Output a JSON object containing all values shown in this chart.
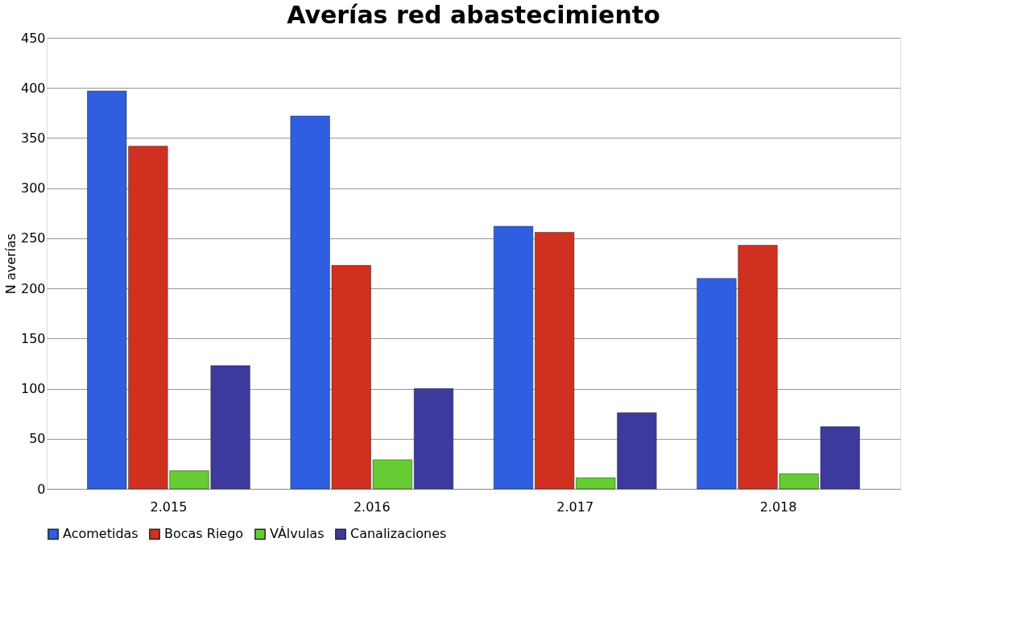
{
  "chart_data": {
    "type": "bar",
    "title": "Averías red abastecimiento",
    "ylabel": "N averías",
    "categories": [
      "2.015",
      "2.016",
      "2.017",
      "2.018"
    ],
    "series": [
      {
        "name": "Acometidas",
        "color": "#2f5fe0",
        "values": [
          397,
          372,
          262,
          210
        ]
      },
      {
        "name": "Bocas Riego",
        "color": "#d03020",
        "values": [
          342,
          223,
          256,
          243
        ]
      },
      {
        "name": "VÁlvulas",
        "color": "#66cc33",
        "values": [
          18,
          29,
          11,
          15
        ]
      },
      {
        "name": "Canalizaciones",
        "color": "#3d3a9e",
        "values": [
          123,
          100,
          76,
          62
        ]
      }
    ],
    "ylim": [
      0,
      450
    ],
    "yticks": [
      0,
      50,
      100,
      150,
      200,
      250,
      300,
      350,
      400,
      450
    ],
    "grid": "y",
    "legend": "bottom"
  }
}
